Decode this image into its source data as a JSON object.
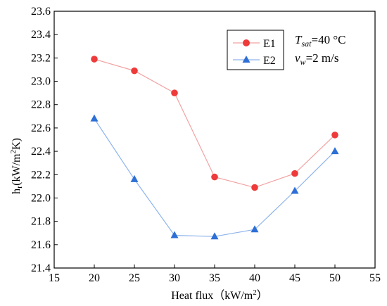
{
  "chart_data": {
    "type": "line",
    "xlabel_main": "Heat flux（kW/m",
    "xlabel_sup": "2",
    "xlabel_end": "）",
    "ylabel_h": "h",
    "ylabel_sub": "r",
    "ylabel_mid": "(kW/m",
    "ylabel_sup": "2",
    "ylabel_end": "K)",
    "xlim": [
      15,
      55
    ],
    "ylim": [
      21.4,
      23.6
    ],
    "xticks": [
      15,
      20,
      25,
      30,
      35,
      40,
      45,
      50,
      55
    ],
    "xtick_labels": [
      "15",
      "20",
      "25",
      "30",
      "35",
      "40",
      "45",
      "50",
      "55"
    ],
    "yticks": [
      21.4,
      21.6,
      21.8,
      22.0,
      22.2,
      22.4,
      22.6,
      22.8,
      23.0,
      23.2,
      23.4,
      23.6
    ],
    "ytick_labels": [
      "21.4",
      "21.6",
      "21.8",
      "22.0",
      "22.2",
      "22.4",
      "22.6",
      "22.8",
      "23.0",
      "23.2",
      "23.4",
      "23.6"
    ],
    "grid": false,
    "legend_position": "top-right",
    "x": [
      20,
      25,
      30,
      35,
      40,
      45,
      50
    ],
    "series": [
      {
        "name": "E1",
        "values": [
          23.19,
          23.09,
          22.9,
          22.18,
          22.09,
          22.21,
          22.54
        ],
        "color": "#ee3a3a",
        "line_color": "#f2a2a2",
        "marker": "circle"
      },
      {
        "name": "E2",
        "values": [
          22.68,
          22.16,
          21.68,
          21.67,
          21.73,
          22.06,
          22.4
        ],
        "color": "#2d6fd6",
        "line_color": "#8fb4ec",
        "marker": "triangle"
      }
    ],
    "annotations": {
      "tsat_symbol": "T",
      "tsat_sub": "sat",
      "tsat_value": "=40 °C",
      "vw_symbol": "v",
      "vw_sub": "w",
      "vw_value": "=2 m/s"
    }
  }
}
